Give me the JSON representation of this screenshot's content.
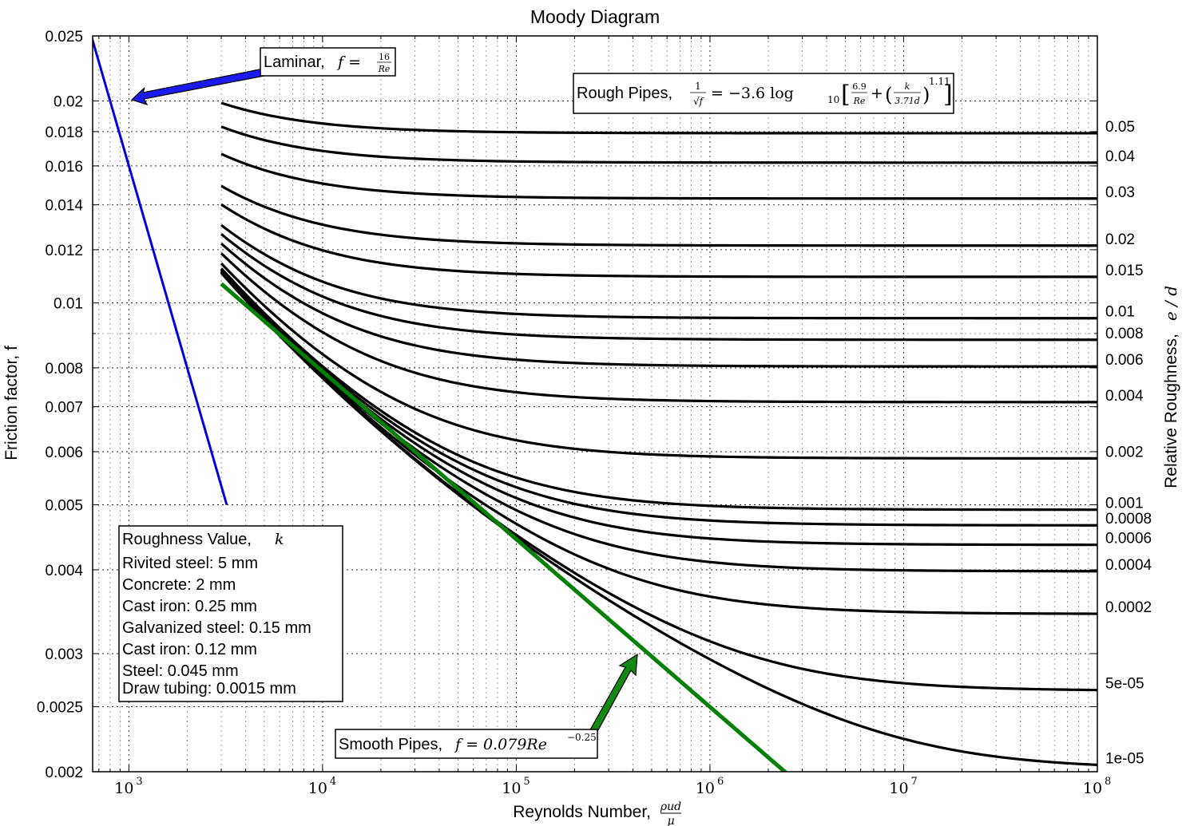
{
  "chart_data": {
    "type": "line",
    "title": "Moody Diagram",
    "xlabel": "Reynolds Number,",
    "xlabel_math": "ρud / μ",
    "ylabel": "Friction factor, f",
    "y2label": "Relative Roughness,",
    "y2label_math": "e / d",
    "xscale": "log",
    "yscale": "log",
    "xlim": [
      650,
      100000000
    ],
    "ylim": [
      0.002,
      0.025
    ],
    "grid": true,
    "x_ticks": [
      {
        "value": 1000,
        "base": "10",
        "exp": "3"
      },
      {
        "value": 10000,
        "base": "10",
        "exp": "4"
      },
      {
        "value": 100000,
        "base": "10",
        "exp": "5"
      },
      {
        "value": 1000000,
        "base": "10",
        "exp": "6"
      },
      {
        "value": 10000000,
        "base": "10",
        "exp": "7"
      },
      {
        "value": 100000000,
        "base": "10",
        "exp": "8"
      }
    ],
    "y_ticks": [
      {
        "value": 0.002,
        "label": "0.002"
      },
      {
        "value": 0.0025,
        "label": "0.0025"
      },
      {
        "value": 0.003,
        "label": "0.003"
      },
      {
        "value": 0.004,
        "label": "0.004"
      },
      {
        "value": 0.005,
        "label": "0.005"
      },
      {
        "value": 0.006,
        "label": "0.006"
      },
      {
        "value": 0.007,
        "label": "0.007"
      },
      {
        "value": 0.008,
        "label": "0.008"
      },
      {
        "value": 0.01,
        "label": "0.01"
      },
      {
        "value": 0.012,
        "label": "0.012"
      },
      {
        "value": 0.014,
        "label": "0.014"
      },
      {
        "value": 0.016,
        "label": "0.016"
      },
      {
        "value": 0.018,
        "label": "0.018"
      },
      {
        "value": 0.02,
        "label": "0.02"
      },
      {
        "value": 0.025,
        "label": "0.025"
      }
    ],
    "laminar": {
      "coef": 16,
      "x_start": 640,
      "x_end": 3200,
      "color": "#0000dd"
    },
    "smooth": {
      "coef": 0.079,
      "exp": -0.25,
      "x_start": 3000,
      "x_end": 2600000,
      "color": "#008000"
    },
    "rough_re_start": 3000,
    "rough_re_end": 100000000,
    "roughness_series": [
      {
        "label": "0.05",
        "value": 0.05
      },
      {
        "label": "0.04",
        "value": 0.04
      },
      {
        "label": "0.03",
        "value": 0.03
      },
      {
        "label": "0.02",
        "value": 0.02
      },
      {
        "label": "0.015",
        "value": 0.015
      },
      {
        "label": "0.01",
        "value": 0.01
      },
      {
        "label": "0.008",
        "value": 0.008
      },
      {
        "label": "0.006",
        "value": 0.006
      },
      {
        "label": "0.004",
        "value": 0.004
      },
      {
        "label": "0.002",
        "value": 0.002
      },
      {
        "label": "0.001",
        "value": 0.001
      },
      {
        "label": "0.0008",
        "value": 0.0008
      },
      {
        "label": "0.0006",
        "value": 0.0006
      },
      {
        "label": "0.0004",
        "value": 0.0004
      },
      {
        "label": "0.0002",
        "value": 0.0002
      },
      {
        "label": "5e-05",
        "value": 5e-05
      },
      {
        "label": "1e-05",
        "value": 1e-05
      }
    ],
    "annotations": {
      "laminar_text": "Laminar,",
      "laminar_math_lhs": "f =",
      "laminar_math_num": "16",
      "laminar_math_den": "Re",
      "rough_text": "Rough Pipes,",
      "rough_lhs_num": "1",
      "rough_lhs_den": "√f",
      "rough_eq": "= −3.6 log",
      "rough_sub": "10",
      "rough_frac1_num": "6.9",
      "rough_frac1_den": "Re",
      "rough_plus": "+",
      "rough_frac2_num": "k",
      "rough_frac2_den": "3.71d",
      "rough_exp": "1.11",
      "smooth_text": "Smooth Pipes,",
      "smooth_math": "f = 0.079Re",
      "smooth_exp": "−0.25"
    },
    "roughness_table": {
      "title": "Roughness Value,",
      "title_math": "k",
      "rows": [
        "Rivited steel: 5 mm",
        "Concrete: 2 mm",
        "Cast iron: 0.25 mm",
        "Galvanized steel: 0.15 mm",
        "Cast iron: 0.12 mm",
        "Steel: 0.045 mm",
        "Draw tubing: 0.0015 mm"
      ]
    }
  }
}
